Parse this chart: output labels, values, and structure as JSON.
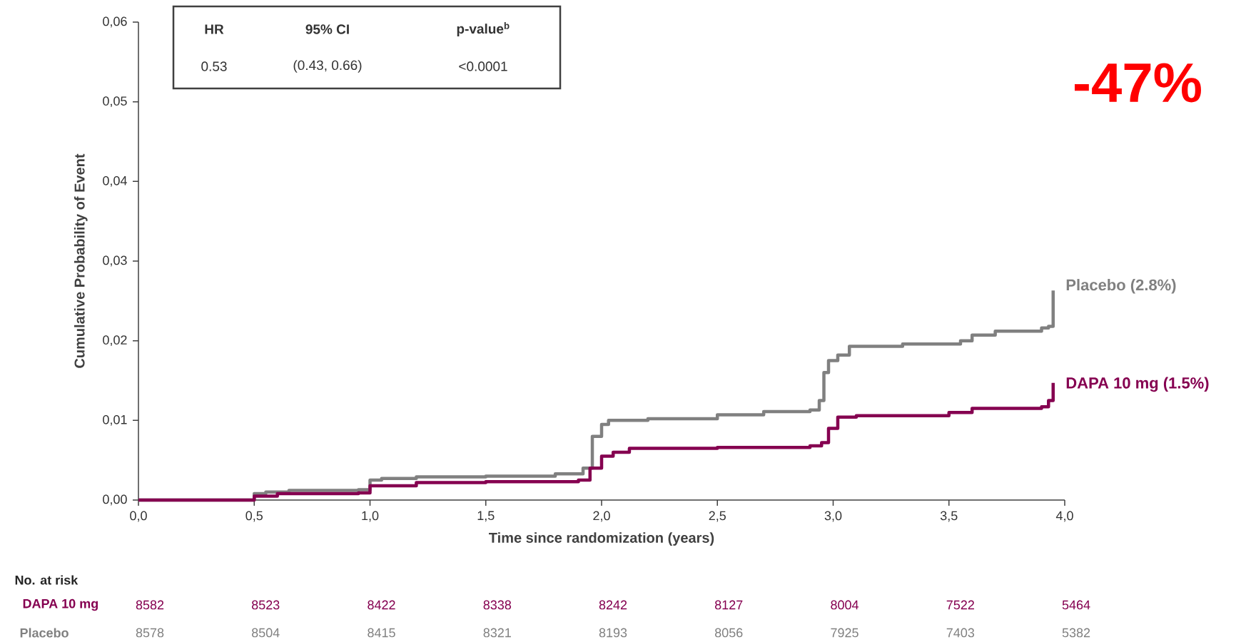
{
  "chart_data": {
    "type": "step",
    "xlabel": "Time since randomization (years)",
    "ylabel": "Cumulative Probability of Event",
    "xlim": [
      0,
      4
    ],
    "ylim": [
      0,
      0.06
    ],
    "xticks": [
      {
        "value": 0,
        "label": "0,0"
      },
      {
        "value": 0.5,
        "label": "0,5"
      },
      {
        "value": 1,
        "label": "1,0"
      },
      {
        "value": 1.5,
        "label": "1,5"
      },
      {
        "value": 2,
        "label": "2,0"
      },
      {
        "value": 2.5,
        "label": "2,5"
      },
      {
        "value": 3,
        "label": "3,0"
      },
      {
        "value": 3.5,
        "label": "3,5"
      },
      {
        "value": 4,
        "label": "4,0"
      }
    ],
    "yticks": [
      {
        "value": 0,
        "label": "0,00"
      },
      {
        "value": 0.01,
        "label": "0,01"
      },
      {
        "value": 0.02,
        "label": "0,02"
      },
      {
        "value": 0.03,
        "label": "0,03"
      },
      {
        "value": 0.04,
        "label": "0,04"
      },
      {
        "value": 0.05,
        "label": "0,05"
      },
      {
        "value": 0.06,
        "label": "0,06"
      }
    ],
    "grid": false,
    "marker": "none",
    "line_style": "solid",
    "series": [
      {
        "name": "Placebo (2.8%)",
        "color": "#808080",
        "x": [
          0,
          0.45,
          0.5,
          0.55,
          0.65,
          0.95,
          1.0,
          1.05,
          1.2,
          1.5,
          1.8,
          1.92,
          1.96,
          2.0,
          2.03,
          2.2,
          2.5,
          2.7,
          2.9,
          2.94,
          2.96,
          2.98,
          3.02,
          3.07,
          3.3,
          3.55,
          3.6,
          3.7,
          3.9,
          3.93,
          3.95
        ],
        "values": [
          0,
          0,
          0.0008,
          0.001,
          0.0012,
          0.0013,
          0.0025,
          0.0027,
          0.0029,
          0.003,
          0.0033,
          0.004,
          0.008,
          0.0095,
          0.01,
          0.0102,
          0.0107,
          0.0111,
          0.0113,
          0.0125,
          0.016,
          0.0175,
          0.0182,
          0.0193,
          0.0196,
          0.02,
          0.0207,
          0.0212,
          0.0216,
          0.0218,
          0.0263
        ]
      },
      {
        "name": "DAPA 10 mg (1.5%)",
        "color": "#850050",
        "x": [
          0,
          0.45,
          0.5,
          0.6,
          0.95,
          1.0,
          1.2,
          1.5,
          1.9,
          1.95,
          2.0,
          2.05,
          2.12,
          2.5,
          2.9,
          2.95,
          2.98,
          3.02,
          3.1,
          3.5,
          3.6,
          3.9,
          3.93,
          3.95
        ],
        "values": [
          0,
          0,
          0.0005,
          0.0008,
          0.0009,
          0.0018,
          0.0022,
          0.0023,
          0.0025,
          0.004,
          0.0055,
          0.006,
          0.0065,
          0.0066,
          0.0068,
          0.0072,
          0.009,
          0.0104,
          0.0106,
          0.011,
          0.0115,
          0.0117,
          0.0125,
          0.0147
        ]
      }
    ],
    "annotations": [
      "HR",
      "95% CI",
      "p-value$^{b}$",
      "0.53",
      "(0.43, 0.66)",
      "<0.0001",
      "-47%",
      "No. at risk",
      "DAPA 10 mg",
      "8582",
      "8523",
      "8422",
      "8338",
      "8242",
      "8127",
      "8004",
      "7522",
      "5464",
      "Placebo",
      "8578",
      "8504",
      "8415",
      "8321",
      "8193",
      "8056",
      "7925",
      "7403",
      "5382"
    ]
  }
}
